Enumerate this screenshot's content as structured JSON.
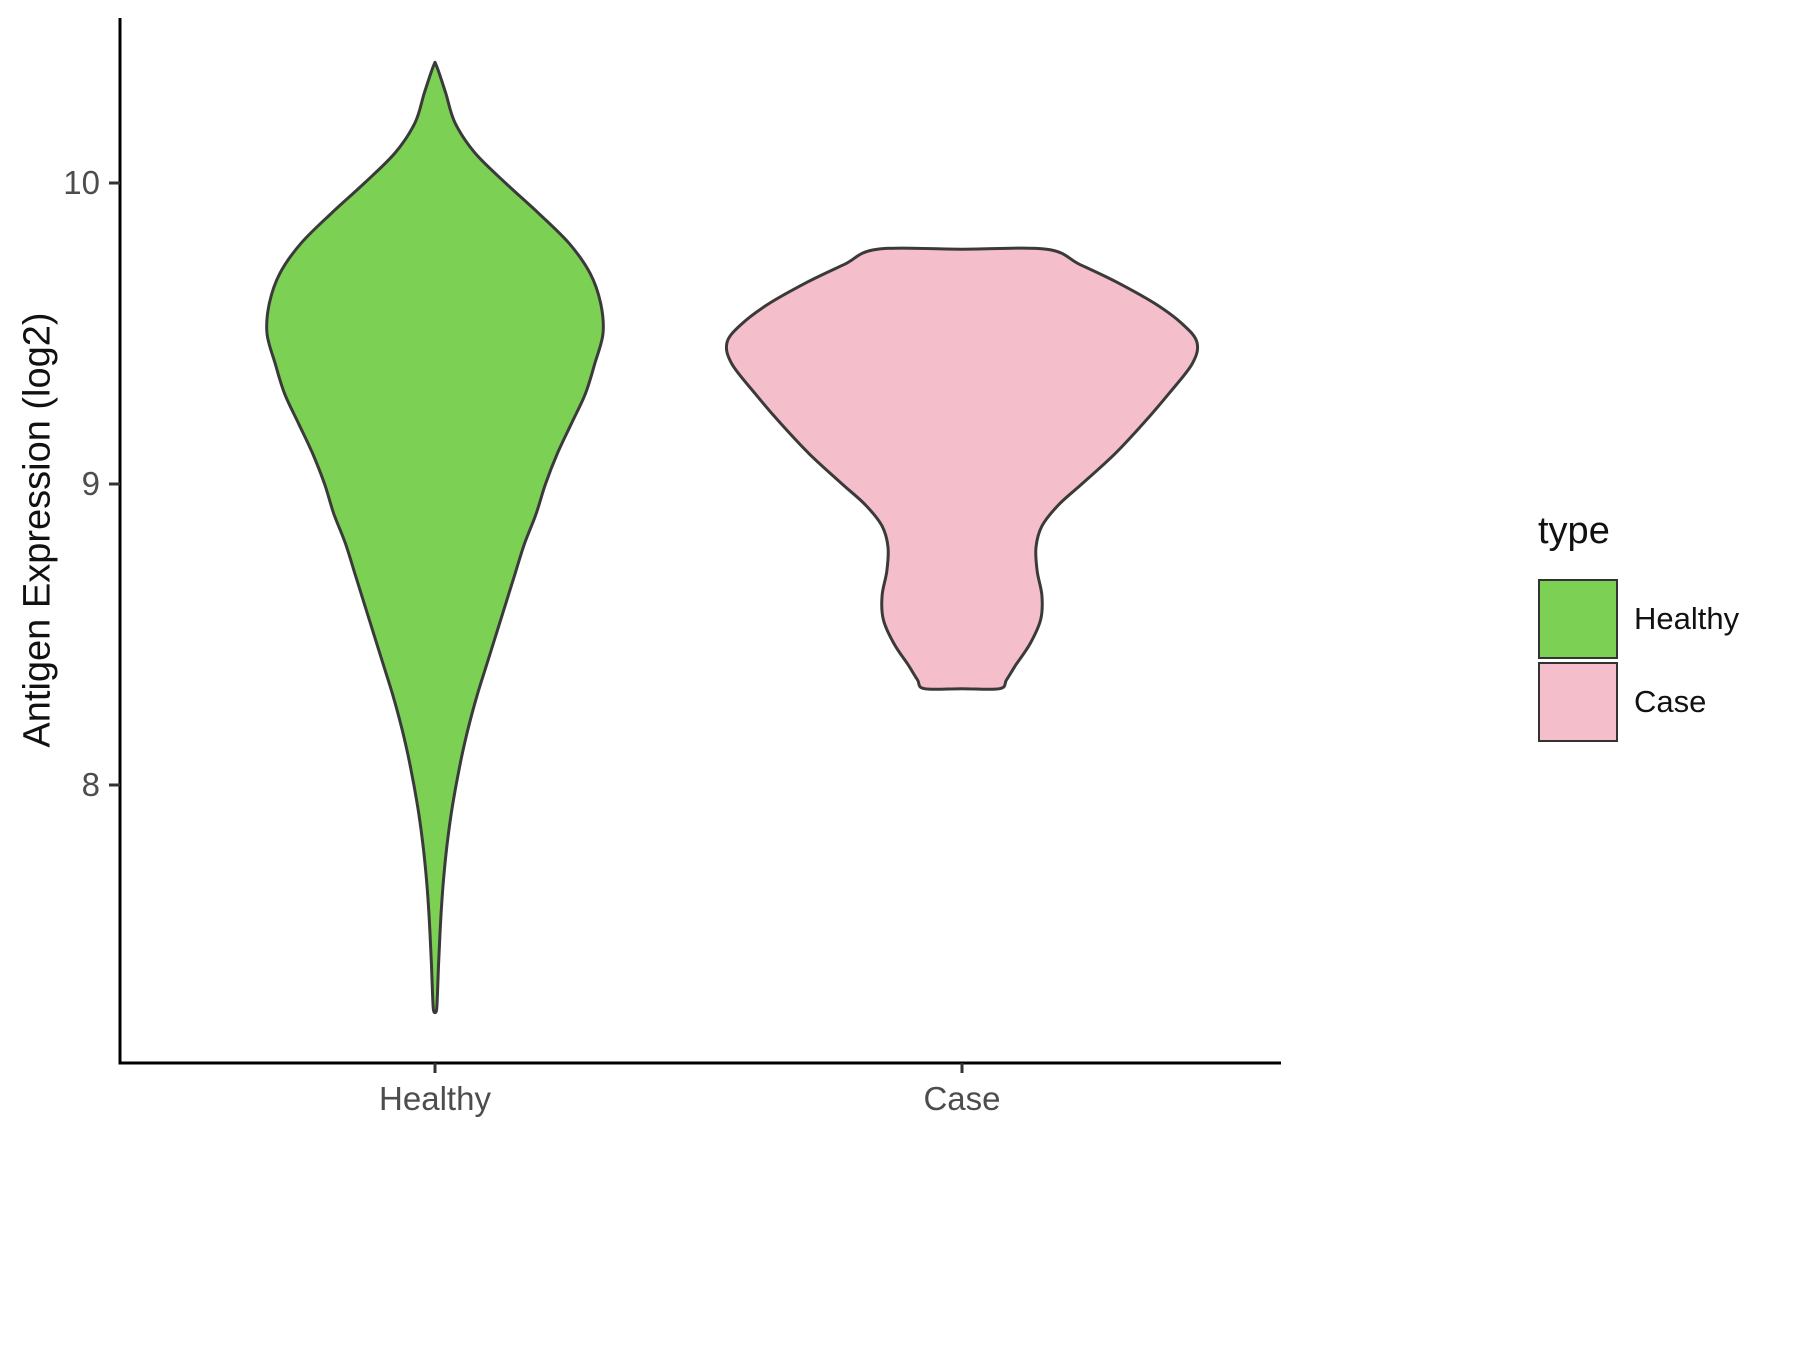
{
  "chart_data": {
    "type": "violin",
    "title": "",
    "xlabel": "",
    "ylabel": "Antigen Expression (log2)",
    "categories": [
      "Healthy",
      "Case"
    ],
    "y_ticks": [
      8,
      9,
      10
    ],
    "y_range_shown": [
      7.2,
      10.45
    ],
    "grid": "off",
    "legend": {
      "title": "type",
      "position": "right",
      "entries": [
        {
          "label": "Healthy",
          "color": "#7CD155"
        },
        {
          "label": "Case",
          "color": "#F5BECB"
        }
      ]
    },
    "style": {
      "outline_color": "#3A3A3A",
      "axis_color": "#000000",
      "tick_label_color": "#4D4D4D",
      "background": "#FFFFFF"
    },
    "series": [
      {
        "name": "Healthy",
        "fill": "#7CD155",
        "category": "Healthy",
        "y_min": 7.25,
        "y_max": 10.39,
        "y_peak_density": 9.5,
        "flat_top": false,
        "flat_bottom": false,
        "profile": [
          [
            10.39,
            0.006
          ],
          [
            10.3,
            0.045
          ],
          [
            10.2,
            0.085
          ],
          [
            10.1,
            0.17
          ],
          [
            10.0,
            0.3
          ],
          [
            9.9,
            0.44
          ],
          [
            9.8,
            0.57
          ],
          [
            9.7,
            0.66
          ],
          [
            9.6,
            0.705
          ],
          [
            9.5,
            0.715
          ],
          [
            9.4,
            0.68
          ],
          [
            9.3,
            0.64
          ],
          [
            9.2,
            0.58
          ],
          [
            9.1,
            0.52
          ],
          [
            9.0,
            0.47
          ],
          [
            8.9,
            0.43
          ],
          [
            8.8,
            0.38
          ],
          [
            8.7,
            0.34
          ],
          [
            8.6,
            0.3
          ],
          [
            8.5,
            0.26
          ],
          [
            8.4,
            0.22
          ],
          [
            8.3,
            0.18
          ],
          [
            8.2,
            0.145
          ],
          [
            8.1,
            0.115
          ],
          [
            8.0,
            0.09
          ],
          [
            7.9,
            0.068
          ],
          [
            7.8,
            0.051
          ],
          [
            7.7,
            0.038
          ],
          [
            7.6,
            0.028
          ],
          [
            7.5,
            0.021
          ],
          [
            7.4,
            0.015
          ],
          [
            7.3,
            0.01
          ],
          [
            7.25,
            0.006
          ]
        ]
      },
      {
        "name": "Case",
        "fill": "#F5BECB",
        "category": "Case",
        "y_min": 8.32,
        "y_max": 9.78,
        "y_peak_density": 9.47,
        "flat_top": true,
        "flat_bottom": true,
        "profile": [
          [
            9.78,
            0.36
          ],
          [
            9.73,
            0.5
          ],
          [
            9.67,
            0.66
          ],
          [
            9.6,
            0.82
          ],
          [
            9.53,
            0.94
          ],
          [
            9.47,
            1.0
          ],
          [
            9.4,
            0.98
          ],
          [
            9.3,
            0.88
          ],
          [
            9.2,
            0.77
          ],
          [
            9.1,
            0.65
          ],
          [
            9.0,
            0.51
          ],
          [
            8.93,
            0.41
          ],
          [
            8.86,
            0.34
          ],
          [
            8.79,
            0.315
          ],
          [
            8.71,
            0.32
          ],
          [
            8.63,
            0.34
          ],
          [
            8.55,
            0.335
          ],
          [
            8.47,
            0.29
          ],
          [
            8.4,
            0.23
          ],
          [
            8.35,
            0.19
          ],
          [
            8.32,
            0.16
          ]
        ]
      }
    ]
  }
}
